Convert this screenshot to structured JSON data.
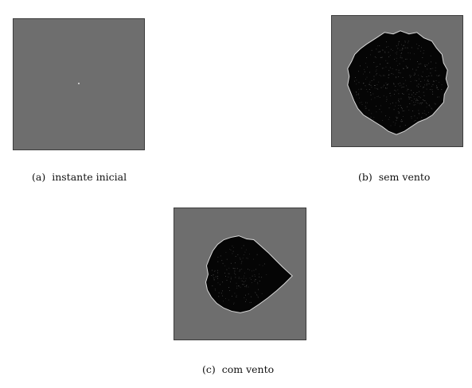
{
  "figure": {
    "panels": [
      {
        "id": "a",
        "tag": "(a)",
        "caption": "instante inicial"
      },
      {
        "id": "b",
        "tag": "(b)",
        "caption": "sem vento"
      },
      {
        "id": "c",
        "tag": "(c)",
        "caption": "com vento"
      }
    ]
  },
  "colors": {
    "background": "#6e6e6e",
    "burned": "#050505",
    "front": "#e6e6e6"
  }
}
